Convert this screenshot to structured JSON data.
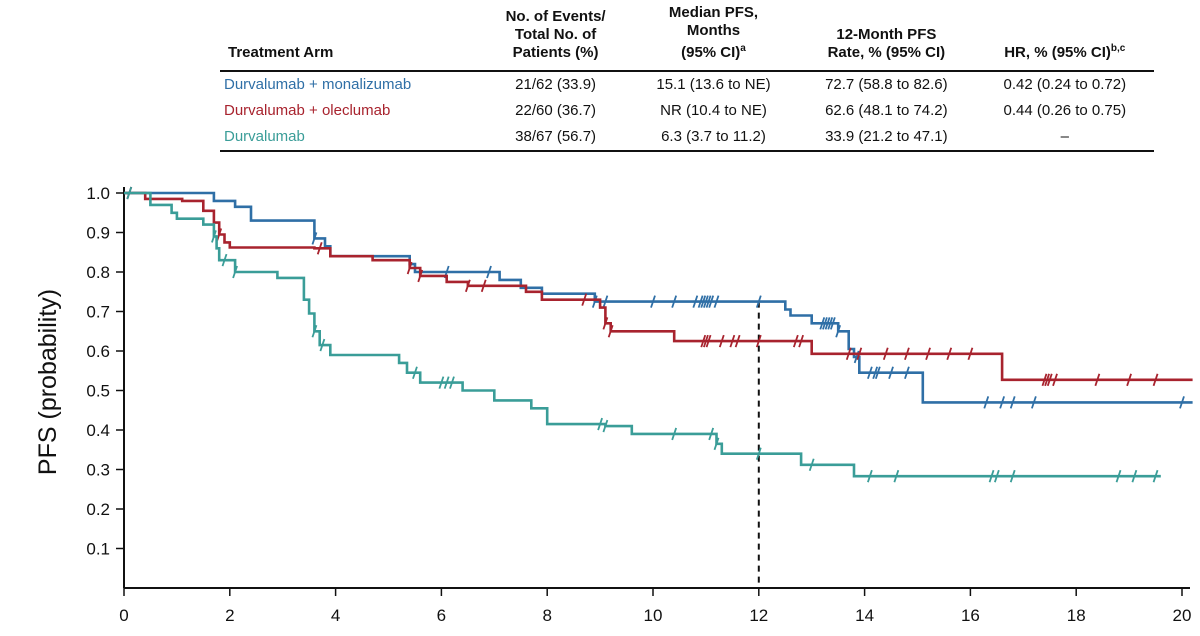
{
  "table": {
    "headers": {
      "arm": "Treatment Arm",
      "events": [
        "No. of Events/",
        "Total No. of",
        "Patients (%)"
      ],
      "median": [
        "Median PFS,",
        "Months",
        "(95% CI)"
      ],
      "median_sup": "a",
      "rate": [
        "12-Month PFS",
        "Rate, % (95% CI)"
      ],
      "hr": "HR, % (95% CI)",
      "hr_sup": "b,c"
    },
    "rows": [
      {
        "arm": "Durvalumab + monalizumab",
        "events": "21/62 (33.9)",
        "median": "15.1 (13.6 to NE)",
        "rate": "72.7 (58.8 to 82.6)",
        "hr": "0.42 (0.24 to 0.72)",
        "color": "#2f6fa6"
      },
      {
        "arm": "Durvalumab + oleclumab",
        "events": "22/60 (36.7)",
        "median": "NR (10.4 to NE)",
        "rate": "62.6 (48.1 to 74.2)",
        "hr": "0.44 (0.26 to 0.75)",
        "color": "#a8232e"
      },
      {
        "arm": "Durvalumab",
        "events": "38/67 (56.7)",
        "median": "6.3 (3.7 to 11.2)",
        "rate": "33.9 (21.2 to 47.1)",
        "hr": "–",
        "color": "#3a9d98"
      }
    ]
  },
  "chart_data": {
    "type": "line",
    "subtype": "kaplan-meier step",
    "ylabel": "PFS (probability)",
    "xlabel": "",
    "xlim": [
      0,
      20
    ],
    "ylim": [
      0,
      1.0
    ],
    "xticks": [
      0,
      2,
      4,
      6,
      8,
      10,
      12,
      14,
      16,
      18,
      20
    ],
    "xtick_labels": [
      "0",
      "2",
      "4",
      "6",
      "8",
      "10",
      "12",
      "14",
      "16",
      "18",
      "20"
    ],
    "yticks": [
      0.1,
      0.2,
      0.3,
      0.4,
      0.5,
      0.6,
      0.7,
      0.8,
      0.9,
      1.0
    ],
    "ytick_labels": [
      "0.1",
      "0.2",
      "0.3",
      "0.4",
      "0.5",
      "0.6",
      "0.7",
      "0.8",
      "0.9",
      "1.0"
    ],
    "reference_line": {
      "x": 12,
      "style": "dashed"
    },
    "series": [
      {
        "name": "Durvalumab + monalizumab",
        "color": "#2f6fa6",
        "steps": [
          [
            0,
            1.0
          ],
          [
            1.7,
            0.98
          ],
          [
            2.1,
            0.965
          ],
          [
            2.4,
            0.93
          ],
          [
            3.6,
            0.885
          ],
          [
            3.8,
            0.865
          ],
          [
            3.9,
            0.84
          ],
          [
            5.4,
            0.82
          ],
          [
            5.5,
            0.8
          ],
          [
            7.1,
            0.78
          ],
          [
            7.5,
            0.76
          ],
          [
            7.9,
            0.745
          ],
          [
            8.9,
            0.725
          ],
          [
            12.5,
            0.705
          ],
          [
            12.6,
            0.69
          ],
          [
            13.0,
            0.67
          ],
          [
            13.5,
            0.65
          ],
          [
            13.7,
            0.605
          ],
          [
            13.8,
            0.585
          ],
          [
            13.9,
            0.545
          ],
          [
            15.1,
            0.47
          ],
          [
            20.2,
            0.47
          ]
        ],
        "censored": [
          0.1,
          3.6,
          6.1,
          6.9,
          8.9,
          9.1,
          10.0,
          10.4,
          10.8,
          10.9,
          10.95,
          11.0,
          11.05,
          11.1,
          11.2,
          12.0,
          13.2,
          13.25,
          13.3,
          13.35,
          13.4,
          13.5,
          13.85,
          14.1,
          14.2,
          14.25,
          14.5,
          14.8,
          16.3,
          16.6,
          16.8,
          17.2,
          20.0
        ]
      },
      {
        "name": "Durvalumab + oleclumab",
        "color": "#a8232e",
        "steps": [
          [
            0,
            1.0
          ],
          [
            0.4,
            0.985
          ],
          [
            1.1,
            0.98
          ],
          [
            1.5,
            0.955
          ],
          [
            1.7,
            0.925
          ],
          [
            1.8,
            0.895
          ],
          [
            1.9,
            0.875
          ],
          [
            2.0,
            0.862
          ],
          [
            3.6,
            0.86
          ],
          [
            3.9,
            0.84
          ],
          [
            4.7,
            0.83
          ],
          [
            5.4,
            0.81
          ],
          [
            5.6,
            0.79
          ],
          [
            6.1,
            0.775
          ],
          [
            6.5,
            0.765
          ],
          [
            7.6,
            0.75
          ],
          [
            7.9,
            0.73
          ],
          [
            9.0,
            0.71
          ],
          [
            9.1,
            0.67
          ],
          [
            9.2,
            0.65
          ],
          [
            10.4,
            0.625
          ],
          [
            13.0,
            0.593
          ],
          [
            16.6,
            0.527
          ],
          [
            20.2,
            0.527
          ]
        ],
        "censored": [
          0.1,
          1.8,
          3.7,
          5.4,
          5.6,
          6.5,
          6.8,
          8.7,
          9.1,
          9.2,
          10.95,
          11.0,
          11.05,
          11.3,
          11.5,
          11.6,
          12.0,
          12.7,
          12.8,
          13.7,
          13.9,
          14.4,
          14.8,
          15.2,
          15.6,
          16.0,
          17.4,
          17.45,
          17.5,
          17.6,
          18.4,
          19.0,
          19.5
        ]
      },
      {
        "name": "Durvalumab",
        "color": "#3a9d98",
        "steps": [
          [
            0,
            1.0
          ],
          [
            0.5,
            0.97
          ],
          [
            0.9,
            0.95
          ],
          [
            1.0,
            0.935
          ],
          [
            1.5,
            0.92
          ],
          [
            1.7,
            0.89
          ],
          [
            1.75,
            0.86
          ],
          [
            1.8,
            0.83
          ],
          [
            2.1,
            0.8
          ],
          [
            2.9,
            0.785
          ],
          [
            3.4,
            0.73
          ],
          [
            3.5,
            0.695
          ],
          [
            3.6,
            0.65
          ],
          [
            3.7,
            0.615
          ],
          [
            3.9,
            0.59
          ],
          [
            5.2,
            0.57
          ],
          [
            5.35,
            0.545
          ],
          [
            5.6,
            0.52
          ],
          [
            6.4,
            0.5
          ],
          [
            7.0,
            0.475
          ],
          [
            7.7,
            0.455
          ],
          [
            8.0,
            0.415
          ],
          [
            9.1,
            0.41
          ],
          [
            9.6,
            0.39
          ],
          [
            11.2,
            0.365
          ],
          [
            11.3,
            0.34
          ],
          [
            12.8,
            0.312
          ],
          [
            13.8,
            0.283
          ],
          [
            19.6,
            0.283
          ]
        ],
        "censored": [
          0.1,
          1.7,
          1.9,
          2.1,
          3.6,
          3.75,
          5.5,
          6.0,
          6.1,
          6.2,
          9.0,
          9.1,
          10.4,
          11.1,
          11.2,
          12.0,
          13.0,
          14.1,
          14.6,
          16.4,
          16.5,
          16.8,
          18.8,
          19.1,
          19.5
        ]
      }
    ]
  }
}
